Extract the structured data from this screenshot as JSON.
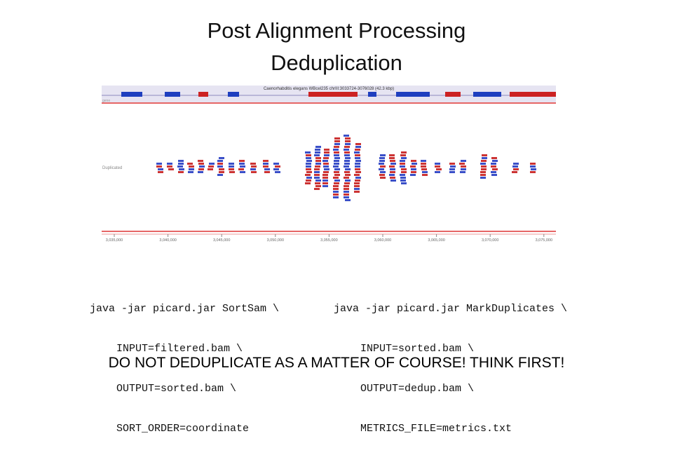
{
  "slide": {
    "title_lines": [
      "Post Alignment Processing",
      "Deduplication"
    ],
    "browser": {
      "locus": "Caenorhabditis elegans WBcel235 chrIII:3033724-3076028 (42.3 kbp)",
      "track_label": "Duplicated",
      "gene_label": "gene",
      "axis_labels": [
        "3,035,000",
        "3,040,000",
        "3,045,000",
        "3,050,000",
        "3,055,000",
        "3,060,000",
        "3,065,000",
        "3,070,000",
        "3,075,000"
      ]
    },
    "code_left": [
      "java -jar picard.jar SortSam \\",
      "INPUT=filtered.bam \\",
      "OUTPUT=sorted.bam \\",
      "SORT_ORDER=coordinate"
    ],
    "code_right": [
      "java -jar picard.jar MarkDuplicates \\",
      "INPUT=sorted.bam \\",
      "OUTPUT=dedup.bam \\",
      "METRICS_FILE=metrics.txt"
    ],
    "warning": "DO NOT DEDUPLICATE AS A MATTER OF COURSE!  THINK FIRST!"
  }
}
